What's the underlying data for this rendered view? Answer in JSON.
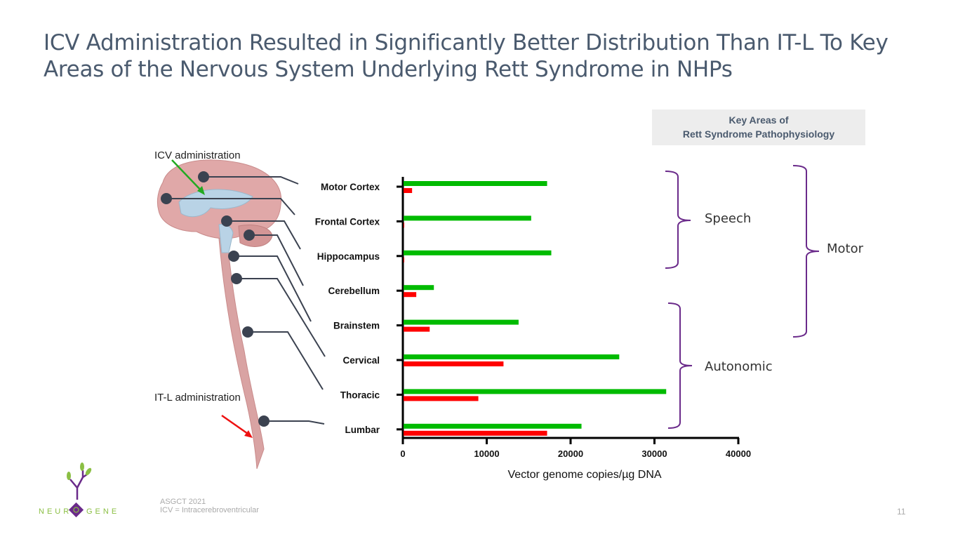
{
  "slide": {
    "title_line1": "ICV Administration Resulted in Significantly Better Distribution Than IT-L To Key",
    "title_line2": "Areas of the Nervous System Underlying Rett Syndrome in NHPs",
    "key_box_line1": "Key Areas of",
    "key_box_line2": "Rett Syndrome Pathophysiology",
    "groups": {
      "speech": "Speech",
      "motor": "Motor",
      "autonomic": "Autonomic"
    },
    "annotations": {
      "icv": "ICV administration",
      "itl": "IT-L administration"
    },
    "footnote_line1": "ASGCT 2021",
    "footnote_line2": "ICV = Intracerebroventricular",
    "page_number": "11",
    "logo_text": "NEUROGENE",
    "brace_color": "#6a2a8a"
  },
  "chart_data": {
    "type": "bar",
    "orientation": "horizontal",
    "title": "",
    "xlabel": "Vector genome copies/µg DNA",
    "ylabel": "",
    "xlim": [
      0,
      40000
    ],
    "xticks": [
      "0",
      "10000",
      "20000",
      "30000",
      "40000"
    ],
    "categories": [
      "Motor Cortex",
      "Frontal Cortex",
      "Hippocampus",
      "Cerebellum",
      "Brainstem",
      "Cervical",
      "Thoracic",
      "Lumbar"
    ],
    "series": [
      {
        "name": "ICV",
        "color": "#00bb00",
        "values": [
          17200,
          15300,
          17700,
          3700,
          13800,
          25800,
          31400,
          21300
        ]
      },
      {
        "name": "IT-L",
        "color": "#ff0000",
        "values": [
          1100,
          150,
          150,
          1600,
          3200,
          12000,
          9000,
          17200
        ]
      }
    ],
    "grid": false,
    "legend": "none"
  }
}
